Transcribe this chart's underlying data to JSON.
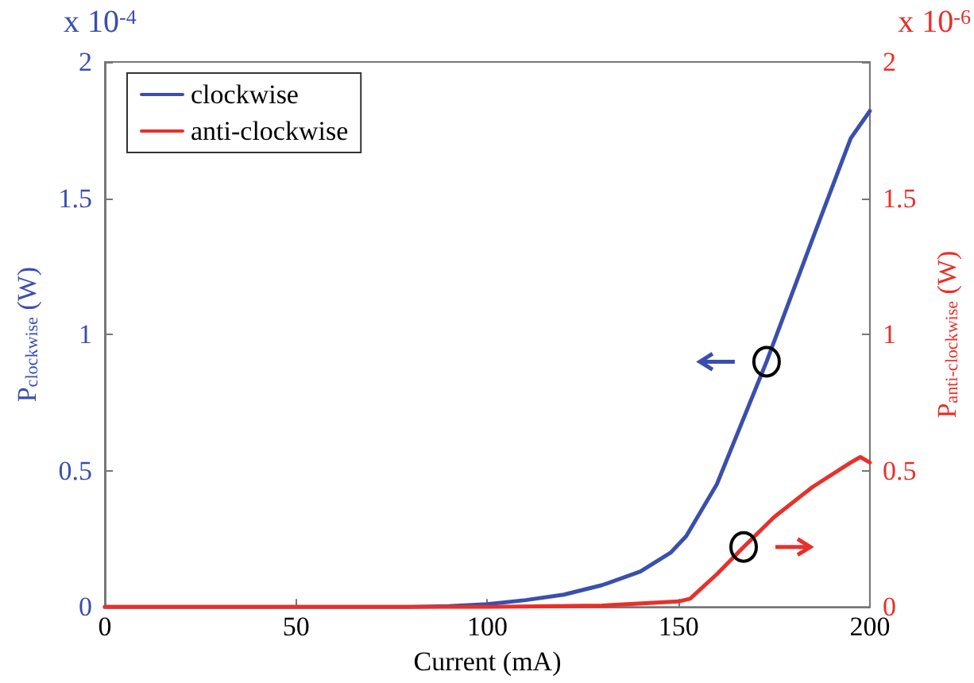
{
  "chart_data": {
    "type": "line",
    "xlabel": "Current (mA)",
    "ylabel": "P$_{clockwise}$ (W)",
    "y2label": "P$_{anti-clockwise}$ (W)",
    "annotations": [
      "x 10$^{-4}$",
      "x 10$^{-6}$"
    ],
    "xlim": [
      0,
      200
    ],
    "xticks": [
      0,
      50,
      100,
      150,
      200
    ],
    "ylim": [
      0,
      2
    ],
    "yticks": [
      0,
      0.5,
      1,
      1.5,
      2
    ],
    "y2lim": [
      0,
      2
    ],
    "y2ticks": [
      0,
      0.5,
      1,
      1.5,
      2
    ],
    "grid": false,
    "legend": "top left",
    "marker": "none",
    "line_style": "solid",
    "series": [
      {
        "name": "clockwise",
        "color": "#3a4fad",
        "x": [
          0,
          80,
          90,
          100,
          110,
          120,
          130,
          140,
          148,
          152,
          160,
          173,
          185,
          195,
          200
        ],
        "values": [
          0,
          0,
          0.003,
          0.01,
          0.025,
          0.045,
          0.08,
          0.13,
          0.2,
          0.26,
          0.45,
          0.9,
          1.35,
          1.72,
          1.82
        ]
      },
      {
        "name": "anti-clockwise",
        "color": "#e8302a",
        "axis": "y2",
        "x": [
          0,
          100,
          130,
          150,
          153,
          160,
          167,
          175,
          185,
          195,
          197.5,
          200
        ],
        "values": [
          0,
          0,
          0.005,
          0.02,
          0.03,
          0.12,
          0.22,
          0.33,
          0.44,
          0.53,
          0.55,
          0.53
        ]
      }
    ]
  }
}
